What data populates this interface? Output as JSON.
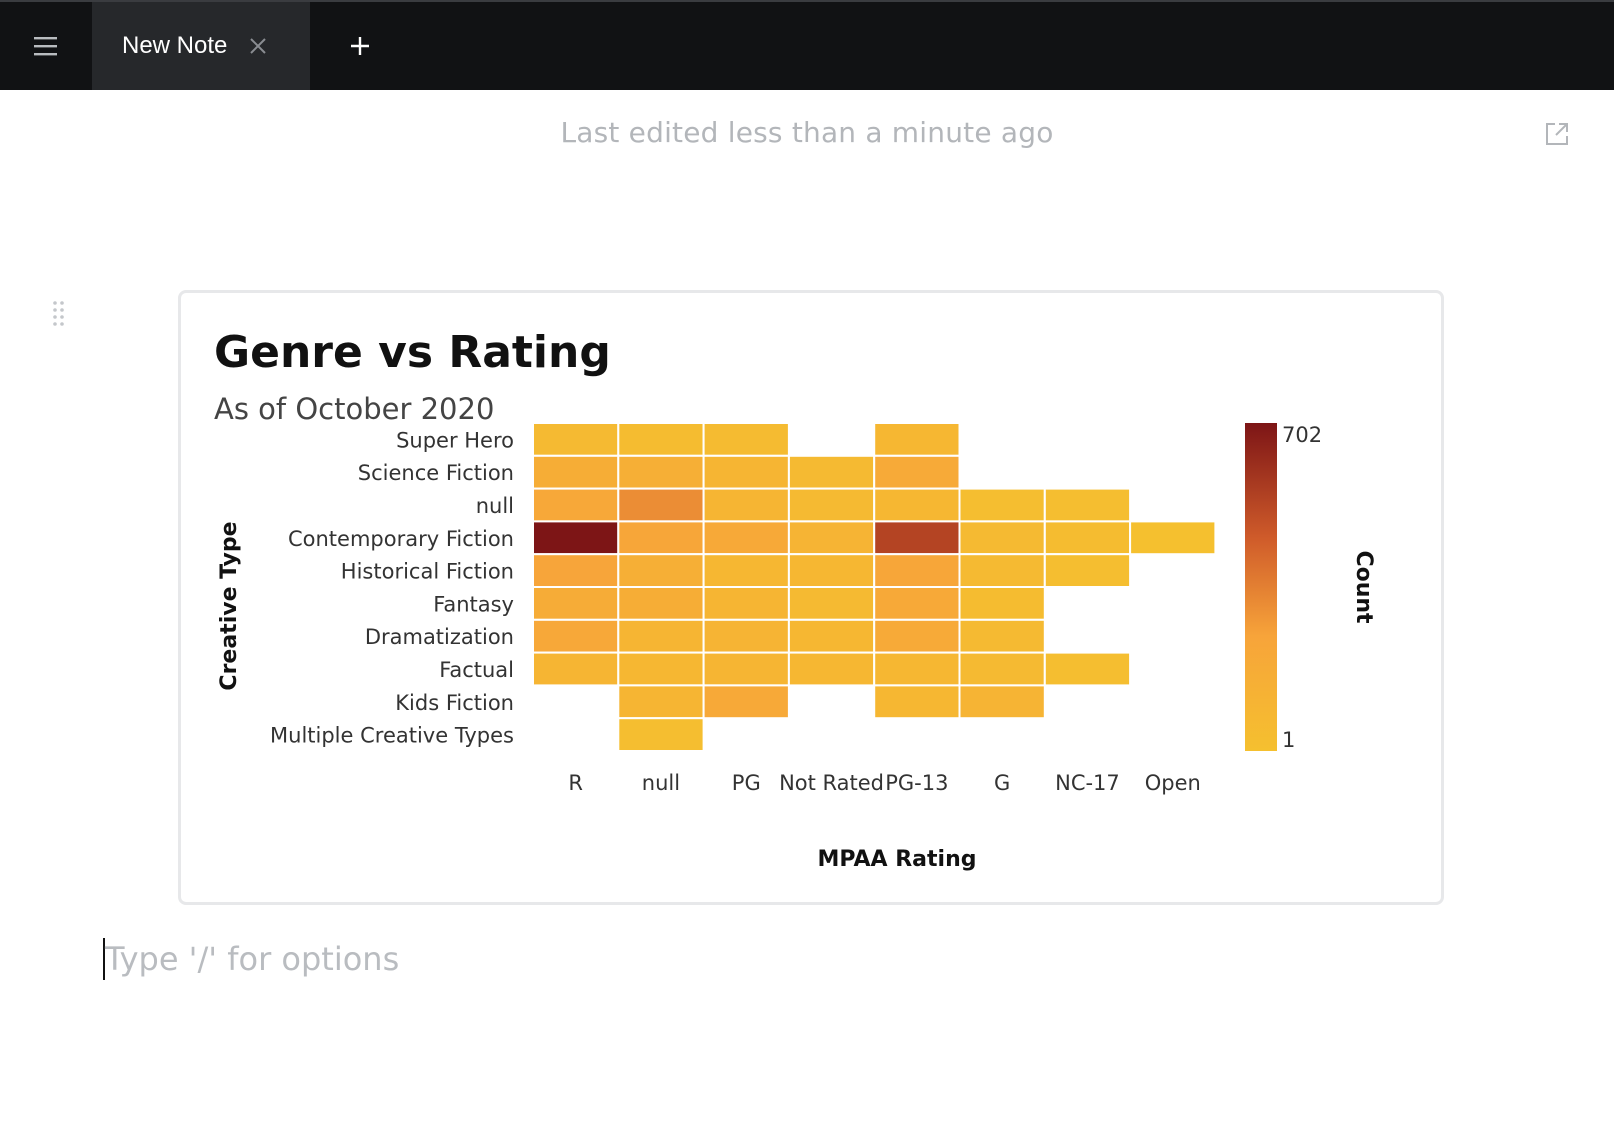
{
  "tabs": [
    {
      "label": "New Note",
      "active": true
    }
  ],
  "icons": {
    "menu": "hamburger-icon",
    "close": "close-icon",
    "add": "plus-icon",
    "open": "external-link-icon",
    "drag": "drag-handle-icon"
  },
  "header": {
    "last_edited": "Last edited less than a minute ago"
  },
  "editor": {
    "placeholder": "Type '/' for options"
  },
  "colors": {
    "low": "#f5c02f",
    "mid": "#f7a43a",
    "high": "#7d1516",
    "topbar": "#111214"
  },
  "chart_data": {
    "type": "heatmap",
    "title": "Genre vs Rating",
    "subtitle": "As of October 2020",
    "xlabel": "MPAA Rating",
    "ylabel": "Creative Type",
    "x_categories": [
      "R",
      "null",
      "PG",
      "Not Rated",
      "PG-13",
      "G",
      "NC-17",
      "Open"
    ],
    "y_categories": [
      "Super Hero",
      "Science Fiction",
      "null",
      "Contemporary Fiction",
      "Historical Fiction",
      "Fantasy",
      "Dramatization",
      "Factual",
      "Kids Fiction",
      "Multiple Creative Types"
    ],
    "values": [
      [
        20,
        10,
        15,
        null,
        30,
        null,
        null,
        null
      ],
      [
        90,
        80,
        40,
        20,
        110,
        null,
        null,
        null
      ],
      [
        130,
        220,
        40,
        20,
        30,
        5,
        5,
        null
      ],
      [
        702,
        140,
        120,
        50,
        480,
        20,
        10,
        1
      ],
      [
        150,
        80,
        30,
        30,
        140,
        20,
        5,
        null
      ],
      [
        100,
        90,
        40,
        20,
        120,
        10,
        null,
        null
      ],
      [
        130,
        40,
        50,
        30,
        110,
        20,
        null,
        null
      ],
      [
        40,
        30,
        40,
        30,
        30,
        20,
        5,
        null
      ],
      [
        null,
        40,
        120,
        null,
        30,
        50,
        null,
        null
      ],
      [
        null,
        5,
        null,
        null,
        null,
        null,
        null,
        null
      ]
    ],
    "colorbar": {
      "label": "Count",
      "min": 1,
      "max": 702,
      "min_label": "1",
      "max_label": "702"
    },
    "legend": "right"
  }
}
